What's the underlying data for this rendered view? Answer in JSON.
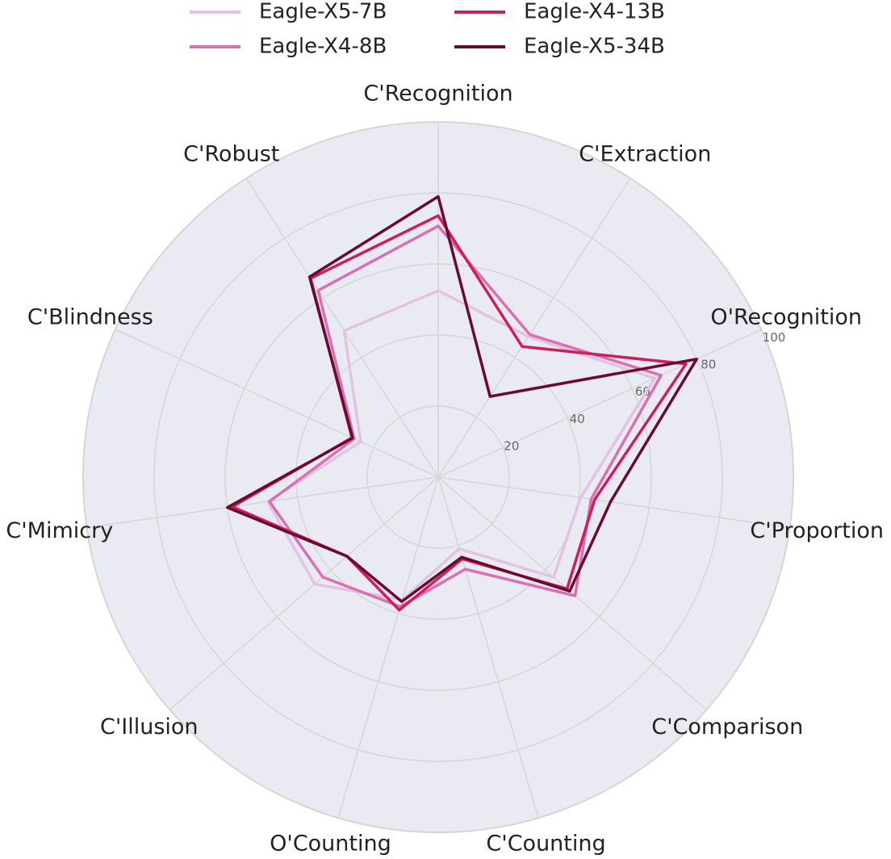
{
  "chart_data": {
    "type": "radar",
    "categories": [
      "C'Recognition",
      "C'Extraction",
      "O'Recognition",
      "C'Proportion",
      "C'Comparison",
      "C'Counting",
      "O'Counting",
      "C'Illusion",
      "C'Mimicry",
      "C'Blindness",
      "C'Robust"
    ],
    "series": [
      {
        "name": "Eagle-X5-7B",
        "color": "#e2c4e2",
        "values": [
          52.5,
          47,
          67,
          40.5,
          43,
          21,
          36,
          46,
          48.5,
          24,
          49
        ]
      },
      {
        "name": "Eagle-X4-8B",
        "color": "#d870b4",
        "values": [
          70.7,
          47.7,
          69,
          43.5,
          51,
          27,
          38,
          43,
          48,
          26,
          62.5
        ]
      },
      {
        "name": "Eagle-X4-13B",
        "color": "#cc1f5e",
        "values": [
          73.6,
          43.7,
          76.7,
          44.5,
          48,
          24,
          39,
          34,
          58.6,
          26.7,
          66.5
        ]
      },
      {
        "name": "Eagle-X5-34B",
        "color": "#6a0a30",
        "values": [
          79,
          27,
          80,
          49,
          49,
          23.5,
          36.5,
          34,
          60,
          26.5,
          67
        ]
      }
    ],
    "rlim": [
      0,
      100
    ],
    "rticks": [
      20,
      40,
      60,
      80,
      100
    ],
    "grid": true
  }
}
